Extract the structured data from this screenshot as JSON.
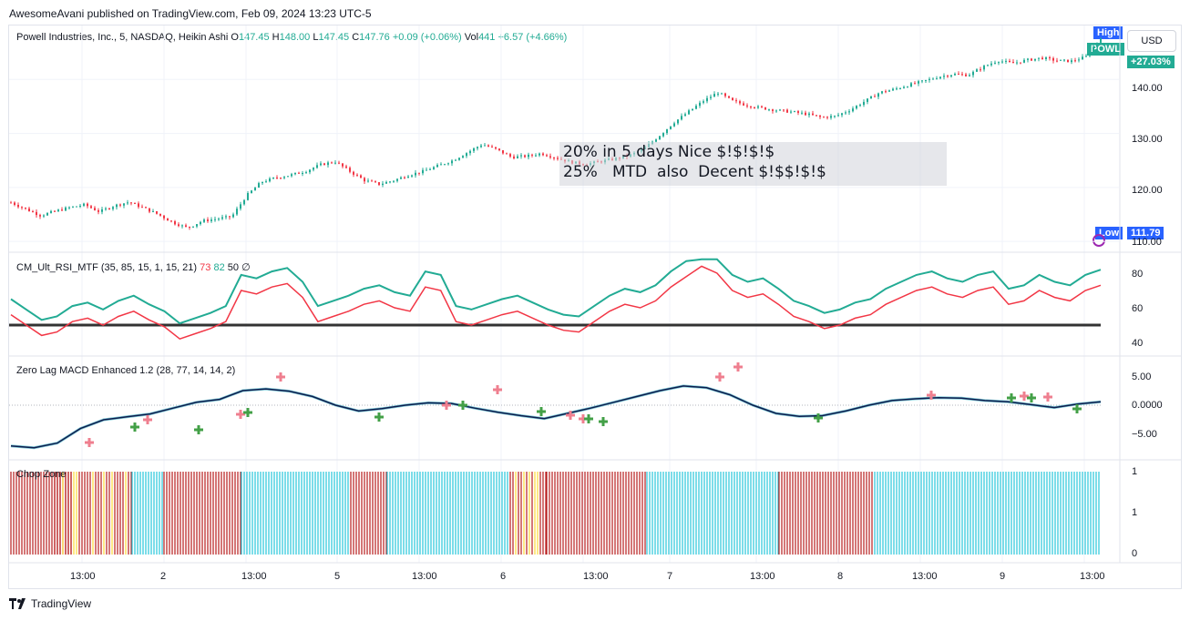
{
  "header": {
    "published": "AwesomeAvani published on TradingView.com, Feb 09, 2024 13:23 UTC-5"
  },
  "legend": {
    "symbol": "Powell Industries, Inc., 5, NASDAQ, Heikin Ashi",
    "o_label": "O",
    "o": "147.45",
    "h_label": "H",
    "h": "148.00",
    "l_label": "L",
    "l": "147.45",
    "c_label": "C",
    "c": "147.76",
    "chg": "+0.09 (+0.06%)",
    "vol_label": "Vol",
    "vol": "441",
    "vol_chg": "+6.57 (+4.66%)"
  },
  "price_scale": {
    "currency": "USD",
    "high_tag": "High",
    "ticker_tag": "POWL",
    "pct_tag": "+27.03%",
    "low_tag": "Low",
    "low_value": "111.79",
    "ticks": [
      "140.00",
      "130.00",
      "120.00",
      "110.00"
    ]
  },
  "annotation": {
    "line1": "20% in 5 days Nice $!$!$!$",
    "line2": "25%   MTD  also  Decent $!$$!$!$"
  },
  "rsi": {
    "name": "CM_Ult_RSI_MTF (35, 85, 15, 1, 15, 21)",
    "v1": "73",
    "v2": "82",
    "v3": "50",
    "v4": "∅",
    "ticks": [
      "80",
      "60",
      "40"
    ]
  },
  "macd": {
    "name": "Zero Lag MACD Enhanced 1.2 (28, 77, 14, 14, 2)",
    "ticks": [
      "5.00",
      "0.0000",
      "−5.00"
    ]
  },
  "chop": {
    "name": "Chop Zone",
    "ticks": [
      "1",
      "1",
      "0"
    ]
  },
  "time_axis": [
    "13:00",
    "2",
    "13:00",
    "5",
    "13:00",
    "6",
    "13:00",
    "7",
    "13:00",
    "8",
    "13:00",
    "9",
    "13:00"
  ],
  "footer": {
    "brand": "TradingView"
  },
  "colors": {
    "up": "#22ab94",
    "down": "#f23645",
    "rsi_line": "#f23645",
    "rsi_signal": "#22ab94",
    "macd": "#0d1b4c",
    "chop_cyan": "#26c6da",
    "chop_red": "#b71c1c",
    "chop_yellow": "#fdd835",
    "accent": "#2962ff"
  },
  "chart_data": {
    "type": "candlestick",
    "title": "Powell Industries, Inc., 5, NASDAQ, Heikin Ashi",
    "ylim": [
      108,
      150
    ],
    "y_ticks": [
      110,
      120,
      130,
      140
    ],
    "close_series": [
      117.2,
      116.0,
      114.8,
      115.6,
      116.3,
      116.8,
      115.5,
      116.6,
      117.3,
      116.2,
      115.0,
      113.5,
      112.5,
      113.8,
      114.2,
      114.6,
      118.5,
      121.0,
      121.8,
      122.3,
      123.0,
      124.2,
      124.8,
      123.0,
      121.3,
      120.6,
      121.3,
      122.3,
      123.0,
      124.0,
      125.0,
      126.5,
      128.0,
      127.0,
      125.6,
      125.8,
      126.3,
      125.5,
      124.7,
      124.3,
      124.8,
      125.3,
      125.9,
      127.2,
      129.5,
      132.0,
      134.0,
      136.0,
      137.6,
      136.0,
      135.2,
      134.7,
      134.3,
      134.0,
      133.6,
      133.0,
      133.2,
      134.4,
      136.0,
      137.6,
      138.2,
      139.0,
      139.7,
      140.5,
      141.0,
      140.8,
      142.3,
      143.5,
      143.0,
      143.6,
      144.0,
      143.5,
      143.4,
      144.2,
      147.76
    ],
    "high": 148.0,
    "low": 111.79,
    "change_pct": "+27.03%"
  }
}
